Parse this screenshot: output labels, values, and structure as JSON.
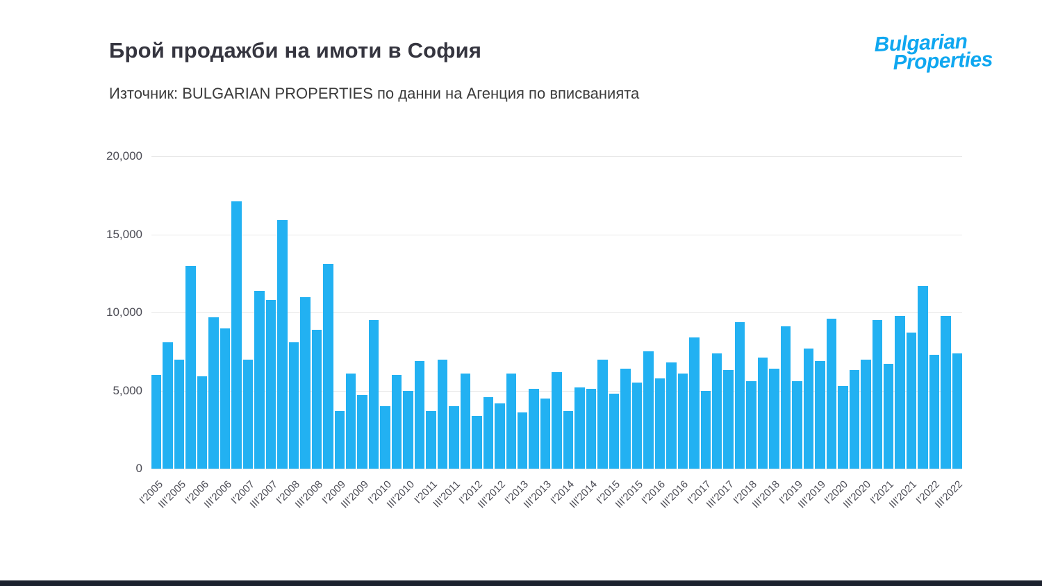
{
  "page": {
    "title": "Брой продажби на имоти в София",
    "subtitle": "Източник: BULGARIAN PROPERTIES по данни на Агенция по вписванията",
    "logo": {
      "line1": "Bulgarian",
      "line2": "Properties"
    }
  },
  "colors": {
    "bar": "#22b1f2",
    "logo_blue": "#0fa7f0",
    "title_text": "#35353f",
    "axis_text": "#4c4c55",
    "gridline": "#e7e7e7",
    "footer_bar": "#1c222e"
  },
  "chart_data": {
    "type": "bar",
    "title": "Брой продажби на имоти в София",
    "source": "Източник: BULGARIAN PROPERTIES по данни на Агенция по вписванията",
    "ylim": [
      0,
      20000
    ],
    "yticks": [
      0,
      5000,
      10000,
      15000,
      20000
    ],
    "ytick_labels": [
      "0",
      "5,000",
      "10,000",
      "15,000",
      "20,000"
    ],
    "grid": "horizontal",
    "legend": "none",
    "tick_every": 2,
    "tick_labels": [
      "I'2005",
      "III'2005",
      "I'2006",
      "III'2006",
      "I'2007",
      "III'2007",
      "I'2008",
      "III'2008",
      "I'2009",
      "III'2009",
      "I'2010",
      "III'2010",
      "I'2011",
      "III'2011",
      "I'2012",
      "III'2012",
      "I'2013",
      "III'2013",
      "I'2014",
      "III'2014",
      "I'2015",
      "III'2015",
      "I'2016",
      "III'2016",
      "I'2017",
      "III'2017",
      "I'2018",
      "III'2018",
      "I'2019",
      "III'2019",
      "I'2020",
      "III'2020",
      "I'2021",
      "III'2021",
      "I'2022",
      "III'2022"
    ],
    "categories": [
      "I'2005",
      "II'2005",
      "III'2005",
      "IV'2005",
      "I'2006",
      "II'2006",
      "III'2006",
      "IV'2006",
      "I'2007",
      "II'2007",
      "III'2007",
      "IV'2007",
      "I'2008",
      "II'2008",
      "III'2008",
      "IV'2008",
      "I'2009",
      "II'2009",
      "III'2009",
      "IV'2009",
      "I'2010",
      "II'2010",
      "III'2010",
      "IV'2010",
      "I'2011",
      "II'2011",
      "III'2011",
      "IV'2011",
      "I'2012",
      "II'2012",
      "III'2012",
      "IV'2012",
      "I'2013",
      "II'2013",
      "III'2013",
      "IV'2013",
      "I'2014",
      "II'2014",
      "III'2014",
      "IV'2014",
      "I'2015",
      "II'2015",
      "III'2015",
      "IV'2015",
      "I'2016",
      "II'2016",
      "III'2016",
      "IV'2016",
      "I'2017",
      "II'2017",
      "III'2017",
      "IV'2017",
      "I'2018",
      "II'2018",
      "III'2018",
      "IV'2018",
      "I'2019",
      "II'2019",
      "III'2019",
      "IV'2019",
      "I'2020",
      "II'2020",
      "III'2020",
      "IV'2020",
      "I'2021",
      "II'2021",
      "III'2021",
      "IV'2021",
      "I'2022",
      "II'2022",
      "III'2022"
    ],
    "values": [
      6000,
      8100,
      7000,
      13000,
      5900,
      9700,
      9000,
      17100,
      7000,
      11400,
      10800,
      15900,
      8100,
      11000,
      8900,
      13100,
      3700,
      6100,
      4700,
      9500,
      4000,
      6000,
      5000,
      6900,
      3700,
      7000,
      4000,
      6100,
      3400,
      4600,
      4200,
      6100,
      3600,
      5100,
      4500,
      6200,
      3700,
      5200,
      5100,
      7000,
      4800,
      6400,
      5500,
      7500,
      5800,
      6800,
      6100,
      8400,
      5000,
      7400,
      6300,
      9400,
      5600,
      7100,
      6400,
      9100,
      5600,
      7700,
      6900,
      9600,
      5300,
      6300,
      7000,
      9500,
      6700,
      9800,
      8700,
      11700,
      7300,
      9800,
      7400
    ]
  }
}
